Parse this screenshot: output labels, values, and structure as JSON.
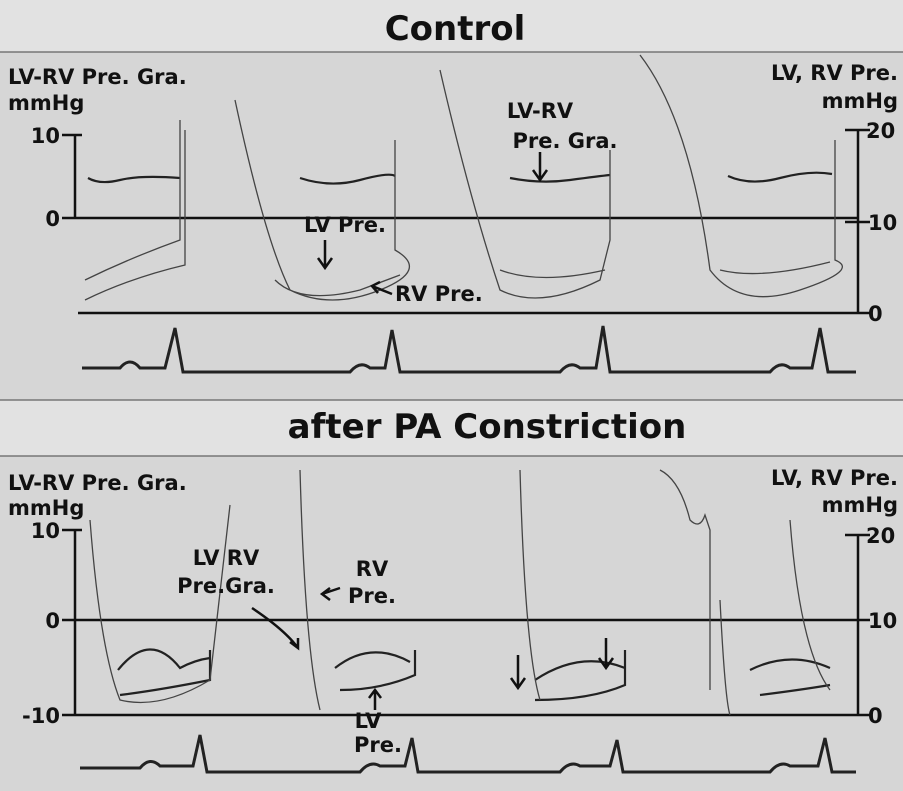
{
  "panels": [
    {
      "title": "Control",
      "left_label": [
        "LV-RV Pre. Gra.",
        "mmHg"
      ],
      "right_label": [
        "LV, RV Pre.",
        "mmHg"
      ],
      "left_ticks": [
        "10",
        "0"
      ],
      "right_ticks": [
        "20",
        "10",
        "0"
      ],
      "annotations": [
        "LV-RV",
        "Pre. Gra.",
        "LV Pre.",
        "RV Pre."
      ]
    },
    {
      "title": "after PA Constriction",
      "left_label": [
        "LV-RV Pre. Gra.",
        "mmHg"
      ],
      "right_label": [
        "LV, RV Pre.",
        "mmHg"
      ],
      "left_ticks": [
        "10",
        "0",
        "-10"
      ],
      "right_ticks": [
        "20",
        "10",
        "0"
      ],
      "annotations": [
        "LV RV",
        "Pre.Gra.",
        "RV",
        "Pre.",
        "LV",
        "Pre."
      ]
    }
  ]
}
